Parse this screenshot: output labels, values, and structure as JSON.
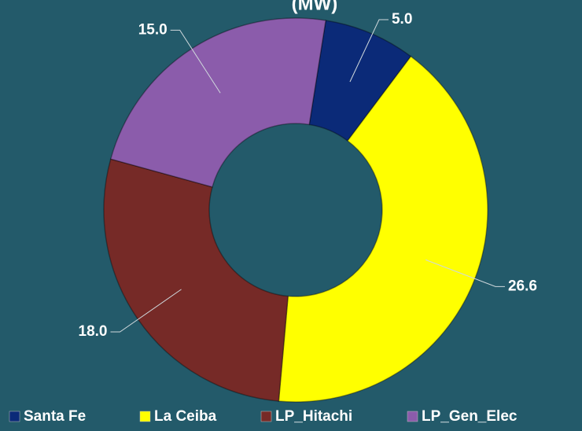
{
  "chart_data": {
    "type": "donut",
    "title": "(MW)",
    "categories": [
      "Santa Fe",
      "La Ceiba",
      "LP_Hitachi",
      "LP_Gen_Elec"
    ],
    "values": [
      5.0,
      26.6,
      18.0,
      15.0
    ],
    "value_labels": [
      "5.0",
      "26.6",
      "18.0",
      "15.0"
    ],
    "colors": [
      "#0b2a78",
      "#ffff00",
      "#762a27",
      "#8b5cab"
    ],
    "legend": "bottom"
  }
}
